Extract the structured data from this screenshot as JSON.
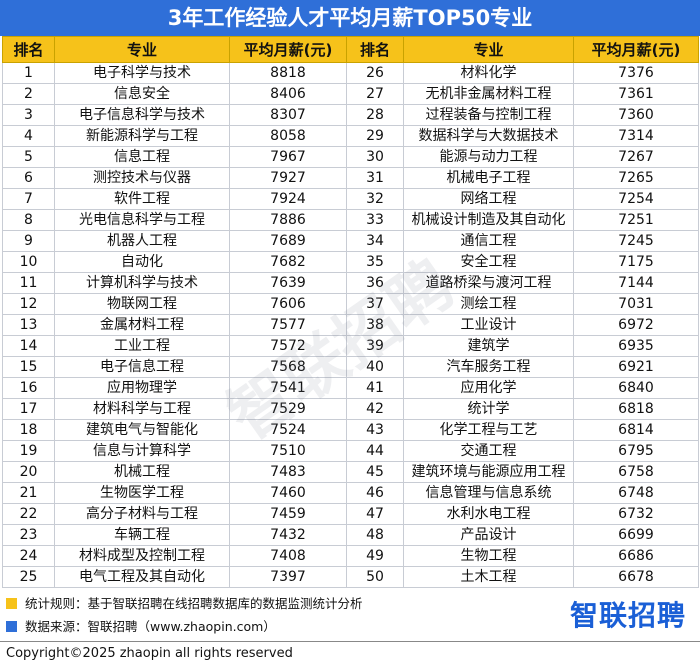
{
  "title": "3年工作经验人才平均月薪TOP50专业",
  "table": {
    "headers": [
      "排名",
      "专业",
      "平均月薪(元)"
    ],
    "rows": [
      [
        1,
        "电子科学与技术",
        8818
      ],
      [
        2,
        "信息安全",
        8406
      ],
      [
        3,
        "电子信息科学与技术",
        8307
      ],
      [
        4,
        "新能源科学与工程",
        8058
      ],
      [
        5,
        "信息工程",
        7967
      ],
      [
        6,
        "测控技术与仪器",
        7927
      ],
      [
        7,
        "软件工程",
        7924
      ],
      [
        8,
        "光电信息科学与工程",
        7886
      ],
      [
        9,
        "机器人工程",
        7689
      ],
      [
        10,
        "自动化",
        7682
      ],
      [
        11,
        "计算机科学与技术",
        7639
      ],
      [
        12,
        "物联网工程",
        7606
      ],
      [
        13,
        "金属材料工程",
        7577
      ],
      [
        14,
        "工业工程",
        7572
      ],
      [
        15,
        "电子信息工程",
        7568
      ],
      [
        16,
        "应用物理学",
        7541
      ],
      [
        17,
        "材料科学与工程",
        7529
      ],
      [
        18,
        "建筑电气与智能化",
        7524
      ],
      [
        19,
        "信息与计算科学",
        7510
      ],
      [
        20,
        "机械工程",
        7483
      ],
      [
        21,
        "生物医学工程",
        7460
      ],
      [
        22,
        "高分子材料与工程",
        7459
      ],
      [
        23,
        "车辆工程",
        7432
      ],
      [
        24,
        "材料成型及控制工程",
        7408
      ],
      [
        25,
        "电气工程及其自动化",
        7397
      ],
      [
        26,
        "材料化学",
        7376
      ],
      [
        27,
        "无机非金属材料工程",
        7361
      ],
      [
        28,
        "过程装备与控制工程",
        7360
      ],
      [
        29,
        "数据科学与大数据技术",
        7314
      ],
      [
        30,
        "能源与动力工程",
        7267
      ],
      [
        31,
        "机械电子工程",
        7265
      ],
      [
        32,
        "网络工程",
        7254
      ],
      [
        33,
        "机械设计制造及其自动化",
        7251
      ],
      [
        34,
        "通信工程",
        7245
      ],
      [
        35,
        "安全工程",
        7175
      ],
      [
        36,
        "道路桥梁与渡河工程",
        7144
      ],
      [
        37,
        "测绘工程",
        7031
      ],
      [
        38,
        "工业设计",
        6972
      ],
      [
        39,
        "建筑学",
        6935
      ],
      [
        40,
        "汽车服务工程",
        6921
      ],
      [
        41,
        "应用化学",
        6840
      ],
      [
        42,
        "统计学",
        6818
      ],
      [
        43,
        "化学工程与工艺",
        6814
      ],
      [
        44,
        "交通工程",
        6795
      ],
      [
        45,
        "建筑环境与能源应用工程",
        6758
      ],
      [
        46,
        "信息管理与信息系统",
        6748
      ],
      [
        47,
        "水利水电工程",
        6732
      ],
      [
        48,
        "产品设计",
        6699
      ],
      [
        49,
        "生物工程",
        6686
      ],
      [
        50,
        "土木工程",
        6678
      ]
    ]
  },
  "watermark": "智联招聘",
  "notes": [
    "统计规则：基于智联招聘在线招聘数据库的数据监测统计分析",
    "数据来源：智联招聘（www.zhaopin.com）"
  ],
  "logo": "智联招聘",
  "copyright": "Copyright©2025 zhaopin all rights reserved"
}
